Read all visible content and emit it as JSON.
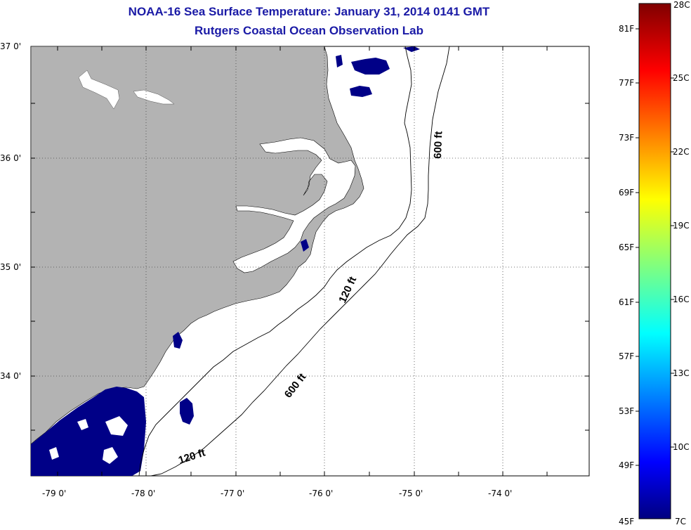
{
  "header": {
    "title": "NOAA-16 Sea Surface Temperature:  January 31, 2014 0141 GMT",
    "subtitle": "Rutgers Coastal Ocean Observation Lab"
  },
  "map": {
    "lat_labels": [
      "37 0'",
      "36 0'",
      "35 0'",
      "34 0'"
    ],
    "lon_labels": [
      "-79 0'",
      "-78 0'",
      "-77 0'",
      "-76 0'",
      "-75 0'",
      "-74 0'"
    ],
    "contour_labels": [
      "600 ft",
      "120 ft",
      "600 ft",
      "120 ft"
    ],
    "colors": {
      "land": "#b3b3b3",
      "cold_water": "#000087",
      "ocean": "#ffffff"
    }
  },
  "colorbar": {
    "min_label": "45F",
    "max_label": "28C",
    "bottom_celsius": "7C",
    "fahrenheit_labels": [
      "81F",
      "77F",
      "73F",
      "69F",
      "65F",
      "61F",
      "57F",
      "53F",
      "49F"
    ],
    "celsius_labels": [
      "25C",
      "22C",
      "19C",
      "16C",
      "13C",
      "10C"
    ]
  }
}
